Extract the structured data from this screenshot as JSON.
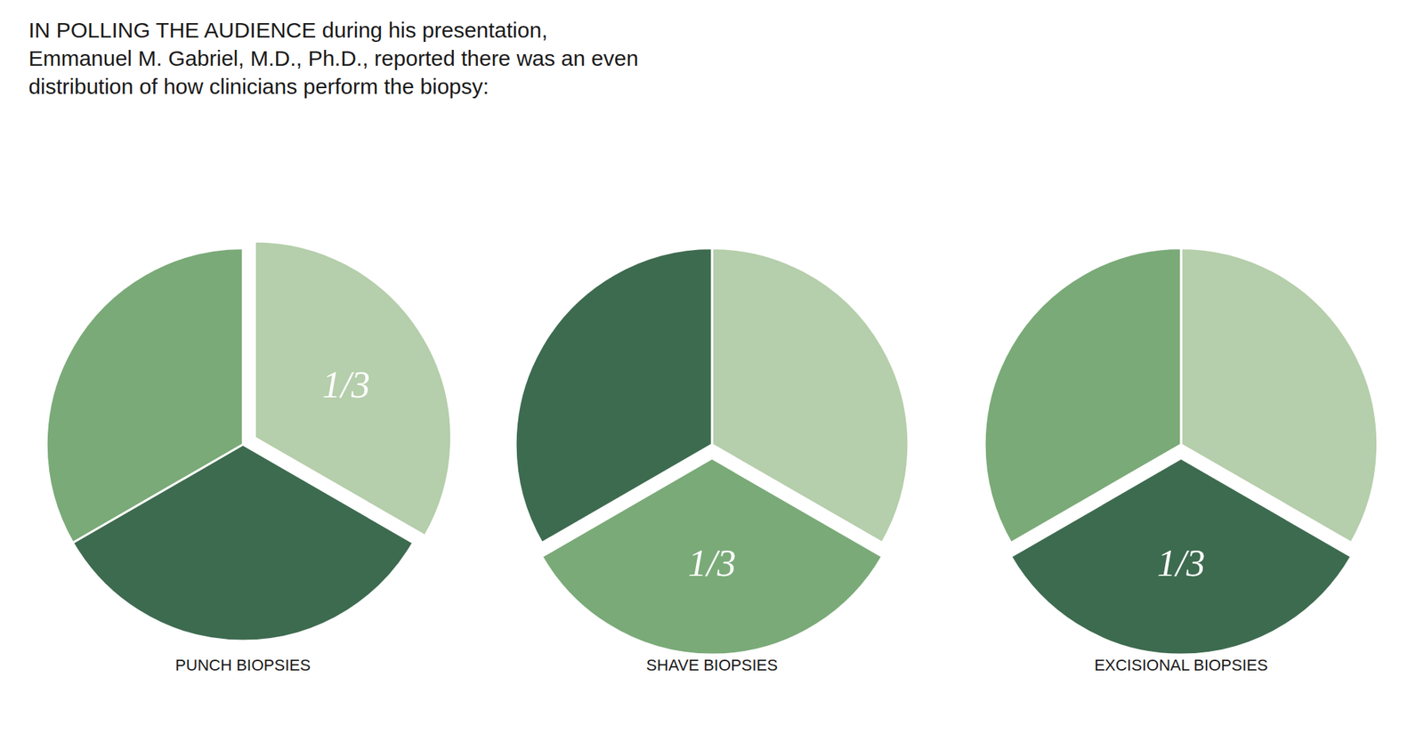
{
  "title": "IN POLLING THE AUDIENCE during his presentation,\nEmmanuel M. Gabriel, M.D., Ph.D., reported there was an even\ndistribution of how clinicians perform the biopsy:",
  "chart_data": [
    {
      "type": "pie",
      "title": "PUNCH BIOPSIES",
      "values": [
        0.3333,
        0.3334,
        0.3333
      ],
      "colors": [
        "#b5ceab",
        "#7aaa78",
        "#3d6b4f"
      ],
      "data_labels": true,
      "value_labels": [
        "1/3",
        null,
        null
      ]
    },
    {
      "type": "pie",
      "title": "SHAVE BIOPSIES",
      "values": [
        0.3333,
        0.3334,
        0.3333
      ],
      "colors": [
        "#b5ceab",
        "#3d6b4f",
        "#7aaa78"
      ],
      "data_labels": true,
      "value_labels": [
        null,
        null,
        "1/3"
      ]
    },
    {
      "type": "pie",
      "title": "EXCISIONAL BIOPSIES",
      "values": [
        0.3333,
        0.3334,
        0.3333
      ],
      "colors": [
        "#b5ceab",
        "#7aaa78",
        "#3d6b4f"
      ],
      "data_labels": true,
      "value_labels": [
        null,
        null,
        "1/3"
      ]
    }
  ]
}
